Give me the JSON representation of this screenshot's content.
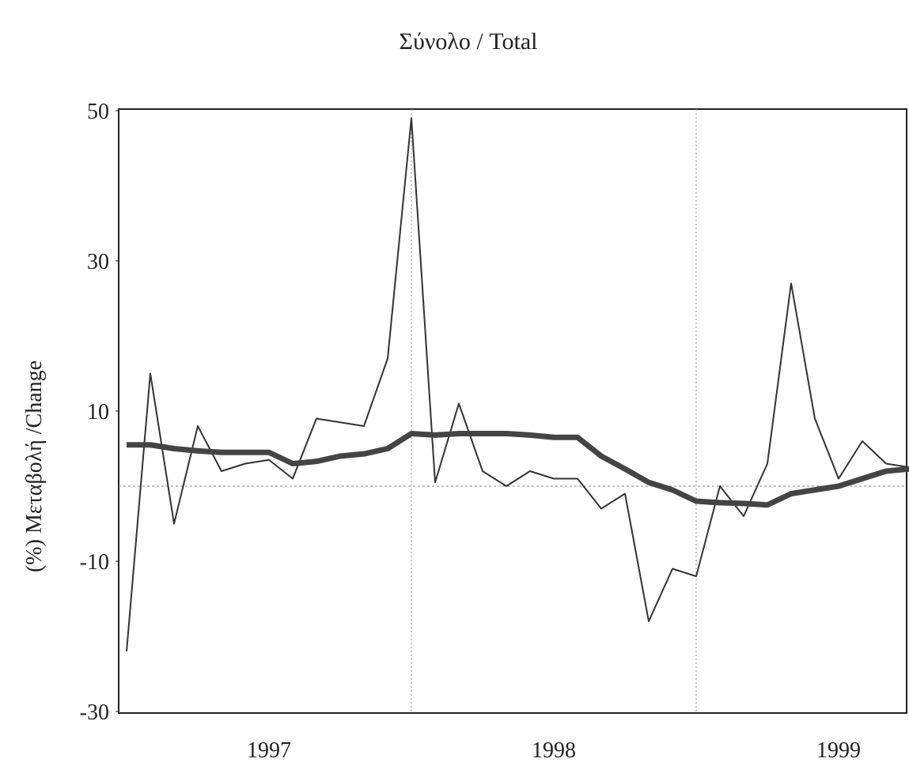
{
  "chart_data": {
    "type": "line",
    "title": "Σύνολο / Total",
    "y_label": "(%) Μεταβολή /Change",
    "categories": [
      null,
      null,
      null,
      null,
      null,
      null,
      "1997",
      null,
      null,
      null,
      null,
      null,
      null,
      null,
      null,
      null,
      null,
      null,
      "1998",
      null,
      null,
      null,
      null,
      null,
      null,
      null,
      null,
      null,
      null,
      null,
      "1999",
      null,
      null,
      null
    ],
    "series": [
      {
        "color": "#333333",
        "values": [
          -22,
          15,
          -5,
          8,
          2,
          3,
          3.5,
          1,
          9,
          8.5,
          8,
          17,
          49,
          0.5,
          11,
          2,
          0,
          2,
          1,
          1,
          -3,
          -1,
          -18,
          -11,
          -12,
          0,
          -4,
          3,
          27,
          9,
          1,
          6,
          3,
          2.5
        ]
      },
      {
        "color": "#444444",
        "values": [
          5.5,
          5.5,
          5,
          4.7,
          4.5,
          4.5,
          4.5,
          3,
          3.3,
          4,
          4.3,
          5,
          7,
          6.8,
          7,
          7,
          7,
          6.8,
          6.5,
          6.5,
          4,
          2.3,
          0.5,
          -0.5,
          -2,
          -2.2,
          -2.3,
          -2.5,
          -1,
          -0.5,
          0,
          1,
          2,
          2.3
        ]
      }
    ],
    "ylim": [
      -30,
      50
    ],
    "yticks": [
      50,
      30,
      10,
      -10,
      -30
    ],
    "reference_line": 0
  }
}
